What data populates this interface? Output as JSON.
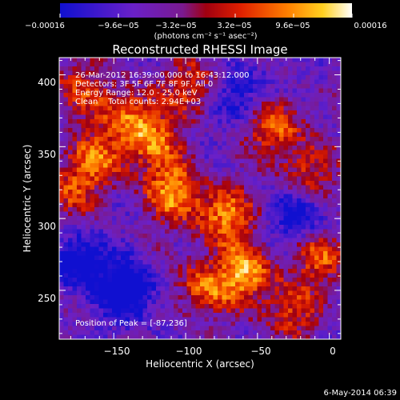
{
  "chart_data": {
    "type": "heatmap",
    "title": "Reconstructed RHESSI Image",
    "xlabel": "Heliocentric X (arcsec)",
    "ylabel": "Heliocentric Y (arcsec)",
    "xlim": [
      -188,
      8
    ],
    "ylim": [
      216,
      412
    ],
    "x_ticks": [
      -150,
      -100,
      -50,
      0
    ],
    "y_ticks": [
      250,
      300,
      350,
      400
    ],
    "x_tick_labels": [
      "−150",
      "−100",
      "−50",
      "0"
    ],
    "y_tick_labels": [
      "250",
      "300",
      "350",
      "400"
    ],
    "colorbar": {
      "min": -0.00016,
      "max": 0.00016,
      "tick_labels": [
        "−0.00016",
        "−9.6e−05",
        "−3.2e−05",
        "3.2e−05",
        "9.6e−05",
        "0.00016"
      ],
      "unit_label": "(photons cm⁻² s⁻¹ asec⁻²)"
    },
    "colors": {
      "low": "#1010d0",
      "mid_low": "#7a20c0",
      "mid": "#c00000",
      "mid_high": "#ff6a00",
      "high": "#ffffff"
    },
    "grid": false,
    "info_lines": [
      "26-Mar-2012 16:39:00.000 to 16:43:12.000",
      "Detectors: 3F 5F 6F 7F 8F 9F, All 0",
      "Energy Range: 12.0 - 25.0 keV",
      "Clean    Total counts: 2.94E+03"
    ],
    "peak_label": "Position of Peak = [-87,236]",
    "bright_sources": [
      {
        "x": -108,
        "y": 318,
        "level": 0.95
      },
      {
        "x": -73,
        "y": 302,
        "level": 0.9
      },
      {
        "x": -58,
        "y": 262,
        "level": 0.95
      },
      {
        "x": -38,
        "y": 365,
        "level": 0.85
      },
      {
        "x": -138,
        "y": 372,
        "level": 0.8
      },
      {
        "x": -160,
        "y": 342,
        "level": 0.75
      },
      {
        "x": -122,
        "y": 352,
        "level": 0.7
      },
      {
        "x": -8,
        "y": 275,
        "level": 0.75
      },
      {
        "x": -88,
        "y": 252,
        "level": 0.75
      },
      {
        "x": -28,
        "y": 235,
        "level": 0.65
      },
      {
        "x": -15,
        "y": 332,
        "level": 0.6
      },
      {
        "x": -95,
        "y": 392,
        "level": 0.6
      },
      {
        "x": -175,
        "y": 390,
        "level": 0.6
      },
      {
        "x": -180,
        "y": 320,
        "level": 0.55
      }
    ],
    "dark_regions": [
      {
        "x": -140,
        "y": 250,
        "level": -0.9
      },
      {
        "x": -20,
        "y": 300,
        "level": -0.7
      },
      {
        "x": -60,
        "y": 385,
        "level": -0.6
      },
      {
        "x": -175,
        "y": 270,
        "level": -0.8
      }
    ]
  },
  "footer_date": "6-May-2014 06:39"
}
